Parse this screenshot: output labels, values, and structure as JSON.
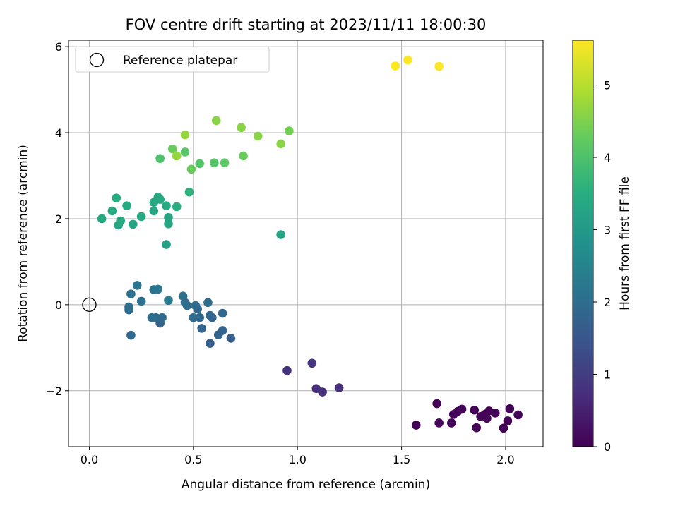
{
  "chart_data": {
    "type": "scatter",
    "title": "FOV centre drift starting at 2023/11/11 18:00:30",
    "xlabel": "Angular distance from reference (arcmin)",
    "ylabel": "Rotation from reference (arcmin)",
    "xlim": [
      -0.1,
      2.18
    ],
    "ylim": [
      -3.3,
      6.15
    ],
    "xticks": [
      0.0,
      0.5,
      1.0,
      1.5,
      2.0
    ],
    "xtick_labels": [
      "0.0",
      "0.5",
      "1.0",
      "1.5",
      "2.0"
    ],
    "yticks": [
      -2,
      0,
      2,
      4,
      6
    ],
    "ytick_labels": [
      "−2",
      "0",
      "2",
      "4",
      "6"
    ],
    "grid": true,
    "legend": {
      "placement": "top-left",
      "entries": [
        "Reference platepar"
      ]
    },
    "reference_point": {
      "x": 0.0,
      "y": 0.0,
      "label": "Reference platepar",
      "marker": "open-circle"
    },
    "colorbar": {
      "label": "Hours from first FF file",
      "colormap": "viridis",
      "range": [
        0,
        5.62
      ],
      "ticks": [
        0,
        1,
        2,
        3,
        4,
        5
      ],
      "tick_labels": [
        "0",
        "1",
        "2",
        "3",
        "4",
        "5"
      ]
    },
    "points": [
      {
        "x": 1.57,
        "y": -2.8,
        "h": 0.05
      },
      {
        "x": 1.67,
        "y": -2.3,
        "h": 0.05
      },
      {
        "x": 1.68,
        "y": -2.75,
        "h": 0.05
      },
      {
        "x": 1.74,
        "y": -2.75,
        "h": 0.05
      },
      {
        "x": 1.75,
        "y": -2.55,
        "h": 0.05
      },
      {
        "x": 1.77,
        "y": -2.48,
        "h": 0.05
      },
      {
        "x": 1.79,
        "y": -2.43,
        "h": 0.05
      },
      {
        "x": 1.85,
        "y": -2.45,
        "h": 0.05
      },
      {
        "x": 1.86,
        "y": -2.86,
        "h": 0.05
      },
      {
        "x": 1.88,
        "y": -2.6,
        "h": 0.05
      },
      {
        "x": 1.9,
        "y": -2.55,
        "h": 0.05
      },
      {
        "x": 1.91,
        "y": -2.64,
        "h": 0.05
      },
      {
        "x": 1.92,
        "y": -2.47,
        "h": 0.05
      },
      {
        "x": 1.95,
        "y": -2.52,
        "h": 0.05
      },
      {
        "x": 1.99,
        "y": -2.87,
        "h": 0.05
      },
      {
        "x": 2.01,
        "y": -2.7,
        "h": 0.05
      },
      {
        "x": 2.02,
        "y": -2.42,
        "h": 0.05
      },
      {
        "x": 2.06,
        "y": -2.56,
        "h": 0.05
      },
      {
        "x": 0.95,
        "y": -1.53,
        "h": 0.8
      },
      {
        "x": 1.07,
        "y": -1.36,
        "h": 0.85
      },
      {
        "x": 1.09,
        "y": -1.95,
        "h": 0.75
      },
      {
        "x": 1.12,
        "y": -2.03,
        "h": 0.75
      },
      {
        "x": 1.2,
        "y": -1.93,
        "h": 0.75
      },
      {
        "x": 0.19,
        "y": -0.05,
        "h": 2.0
      },
      {
        "x": 0.19,
        "y": -0.12,
        "h": 2.0
      },
      {
        "x": 0.2,
        "y": -0.71,
        "h": 1.9
      },
      {
        "x": 0.2,
        "y": 0.25,
        "h": 2.1
      },
      {
        "x": 0.23,
        "y": 0.45,
        "h": 2.2
      },
      {
        "x": 0.25,
        "y": 0.08,
        "h": 2.1
      },
      {
        "x": 0.3,
        "y": -0.3,
        "h": 2.0
      },
      {
        "x": 0.31,
        "y": 0.35,
        "h": 2.2
      },
      {
        "x": 0.32,
        "y": -0.3,
        "h": 2.0
      },
      {
        "x": 0.33,
        "y": 0.36,
        "h": 2.2
      },
      {
        "x": 0.34,
        "y": -0.43,
        "h": 1.8
      },
      {
        "x": 0.35,
        "y": -0.3,
        "h": 1.9
      },
      {
        "x": 0.38,
        "y": 0.1,
        "h": 2.3
      },
      {
        "x": 0.45,
        "y": 0.2,
        "h": 2.1
      },
      {
        "x": 0.46,
        "y": 0.05,
        "h": 2.0
      },
      {
        "x": 0.47,
        "y": -0.02,
        "h": 2.0
      },
      {
        "x": 0.5,
        "y": -0.3,
        "h": 2.0
      },
      {
        "x": 0.51,
        "y": -0.02,
        "h": 2.0
      },
      {
        "x": 0.52,
        "y": -0.1,
        "h": 1.9
      },
      {
        "x": 0.53,
        "y": -0.3,
        "h": 1.9
      },
      {
        "x": 0.54,
        "y": -0.55,
        "h": 1.8
      },
      {
        "x": 0.57,
        "y": 0.05,
        "h": 2.0
      },
      {
        "x": 0.58,
        "y": -0.25,
        "h": 1.9
      },
      {
        "x": 0.59,
        "y": -0.3,
        "h": 1.8
      },
      {
        "x": 0.58,
        "y": -0.9,
        "h": 1.7
      },
      {
        "x": 0.62,
        "y": -0.7,
        "h": 1.8
      },
      {
        "x": 0.64,
        "y": -0.6,
        "h": 1.8
      },
      {
        "x": 0.64,
        "y": -0.2,
        "h": 1.9
      },
      {
        "x": 0.68,
        "y": -0.78,
        "h": 1.7
      },
      {
        "x": 0.06,
        "y": 2.0,
        "h": 3.4
      },
      {
        "x": 0.11,
        "y": 2.18,
        "h": 3.4
      },
      {
        "x": 0.13,
        "y": 2.48,
        "h": 3.5
      },
      {
        "x": 0.14,
        "y": 1.85,
        "h": 3.3
      },
      {
        "x": 0.15,
        "y": 1.95,
        "h": 3.4
      },
      {
        "x": 0.18,
        "y": 2.3,
        "h": 3.4
      },
      {
        "x": 0.21,
        "y": 1.87,
        "h": 3.3
      },
      {
        "x": 0.25,
        "y": 2.05,
        "h": 3.4
      },
      {
        "x": 0.31,
        "y": 2.18,
        "h": 3.3
      },
      {
        "x": 0.31,
        "y": 2.38,
        "h": 3.4
      },
      {
        "x": 0.33,
        "y": 2.5,
        "h": 3.4
      },
      {
        "x": 0.34,
        "y": 2.45,
        "h": 3.4
      },
      {
        "x": 0.37,
        "y": 2.3,
        "h": 3.4
      },
      {
        "x": 0.38,
        "y": 2.03,
        "h": 3.3
      },
      {
        "x": 0.38,
        "y": 1.88,
        "h": 3.3
      },
      {
        "x": 0.37,
        "y": 1.4,
        "h": 3.2
      },
      {
        "x": 0.42,
        "y": 2.28,
        "h": 3.5
      },
      {
        "x": 0.48,
        "y": 2.62,
        "h": 3.6
      },
      {
        "x": 0.92,
        "y": 1.63,
        "h": 3.3
      },
      {
        "x": 0.34,
        "y": 3.4,
        "h": 4.0
      },
      {
        "x": 0.4,
        "y": 3.62,
        "h": 4.3
      },
      {
        "x": 0.42,
        "y": 3.46,
        "h": 4.7
      },
      {
        "x": 0.46,
        "y": 3.55,
        "h": 4.1
      },
      {
        "x": 0.46,
        "y": 3.95,
        "h": 4.7
      },
      {
        "x": 0.49,
        "y": 3.15,
        "h": 4.3
      },
      {
        "x": 0.53,
        "y": 3.28,
        "h": 4.1
      },
      {
        "x": 0.6,
        "y": 3.3,
        "h": 4.1
      },
      {
        "x": 0.61,
        "y": 4.28,
        "h": 4.6
      },
      {
        "x": 0.65,
        "y": 3.3,
        "h": 4.2
      },
      {
        "x": 0.73,
        "y": 4.12,
        "h": 4.6
      },
      {
        "x": 0.74,
        "y": 3.46,
        "h": 4.3
      },
      {
        "x": 0.81,
        "y": 3.92,
        "h": 4.6
      },
      {
        "x": 0.92,
        "y": 3.74,
        "h": 4.6
      },
      {
        "x": 0.96,
        "y": 4.04,
        "h": 4.4
      },
      {
        "x": 1.47,
        "y": 5.55,
        "h": 5.6
      },
      {
        "x": 1.53,
        "y": 5.69,
        "h": 5.6
      },
      {
        "x": 1.68,
        "y": 5.54,
        "h": 5.6
      }
    ]
  }
}
